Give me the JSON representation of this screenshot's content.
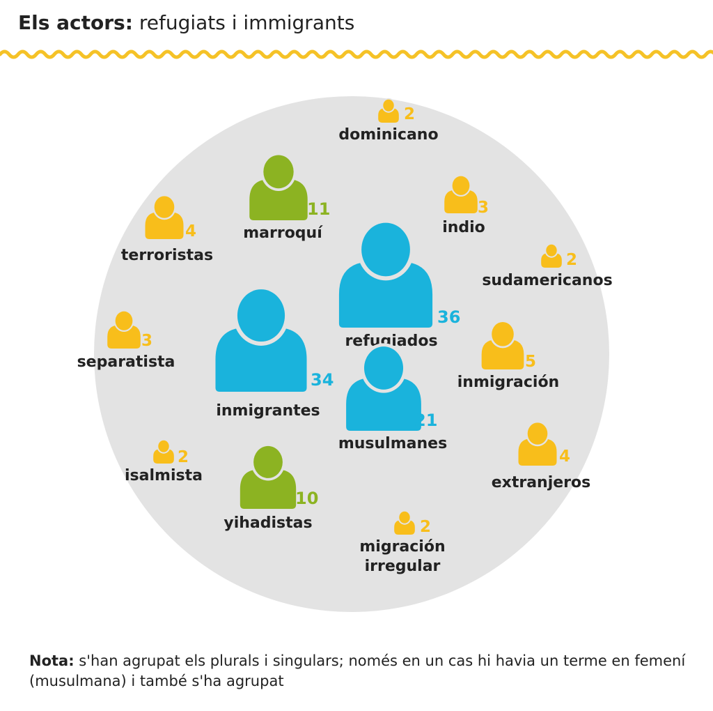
{
  "header": {
    "title_bold": "Els actors:",
    "title_rest": " refugiats i immigrants"
  },
  "note": {
    "label": "Nota:",
    "text": " s'han agrupat els plurals i singulars; només en un cas hi havia un terme en femení (musulmana) i també s'ha agrupat"
  },
  "colors": {
    "accent_wave": "#f5c227",
    "circle_bg": "#e3e3e3",
    "blue": "#1ab3dc",
    "green": "#8cb322",
    "yellow": "#f8be1b",
    "label_text": "#222222"
  },
  "chart_data": {
    "type": "pictogram-bubble",
    "title": "Els actors: refugiats i immigrants",
    "icon": "person-icon",
    "items": [
      {
        "label": "refugiados",
        "value": 36,
        "color_group": "blue"
      },
      {
        "label": "inmigrantes",
        "value": 34,
        "color_group": "blue"
      },
      {
        "label": "musulmanes",
        "value": 21,
        "color_group": "blue"
      },
      {
        "label": "marroquí",
        "value": 11,
        "color_group": "green"
      },
      {
        "label": "yihadistas",
        "value": 10,
        "color_group": "green"
      },
      {
        "label": "inmigración",
        "value": 5,
        "color_group": "yellow"
      },
      {
        "label": "terroristas",
        "value": 4,
        "color_group": "yellow"
      },
      {
        "label": "extranjeros",
        "value": 4,
        "color_group": "yellow"
      },
      {
        "label": "indio",
        "value": 3,
        "color_group": "yellow"
      },
      {
        "label": "separatista",
        "value": 3,
        "color_group": "yellow"
      },
      {
        "label": "dominicano",
        "value": 2,
        "color_group": "yellow"
      },
      {
        "label": "sudamericanos",
        "value": 2,
        "color_group": "yellow"
      },
      {
        "label": "isalmista",
        "value": 2,
        "color_group": "yellow"
      },
      {
        "label": [
          "migración",
          "irregular"
        ],
        "value": 2,
        "color_group": "yellow"
      }
    ]
  }
}
